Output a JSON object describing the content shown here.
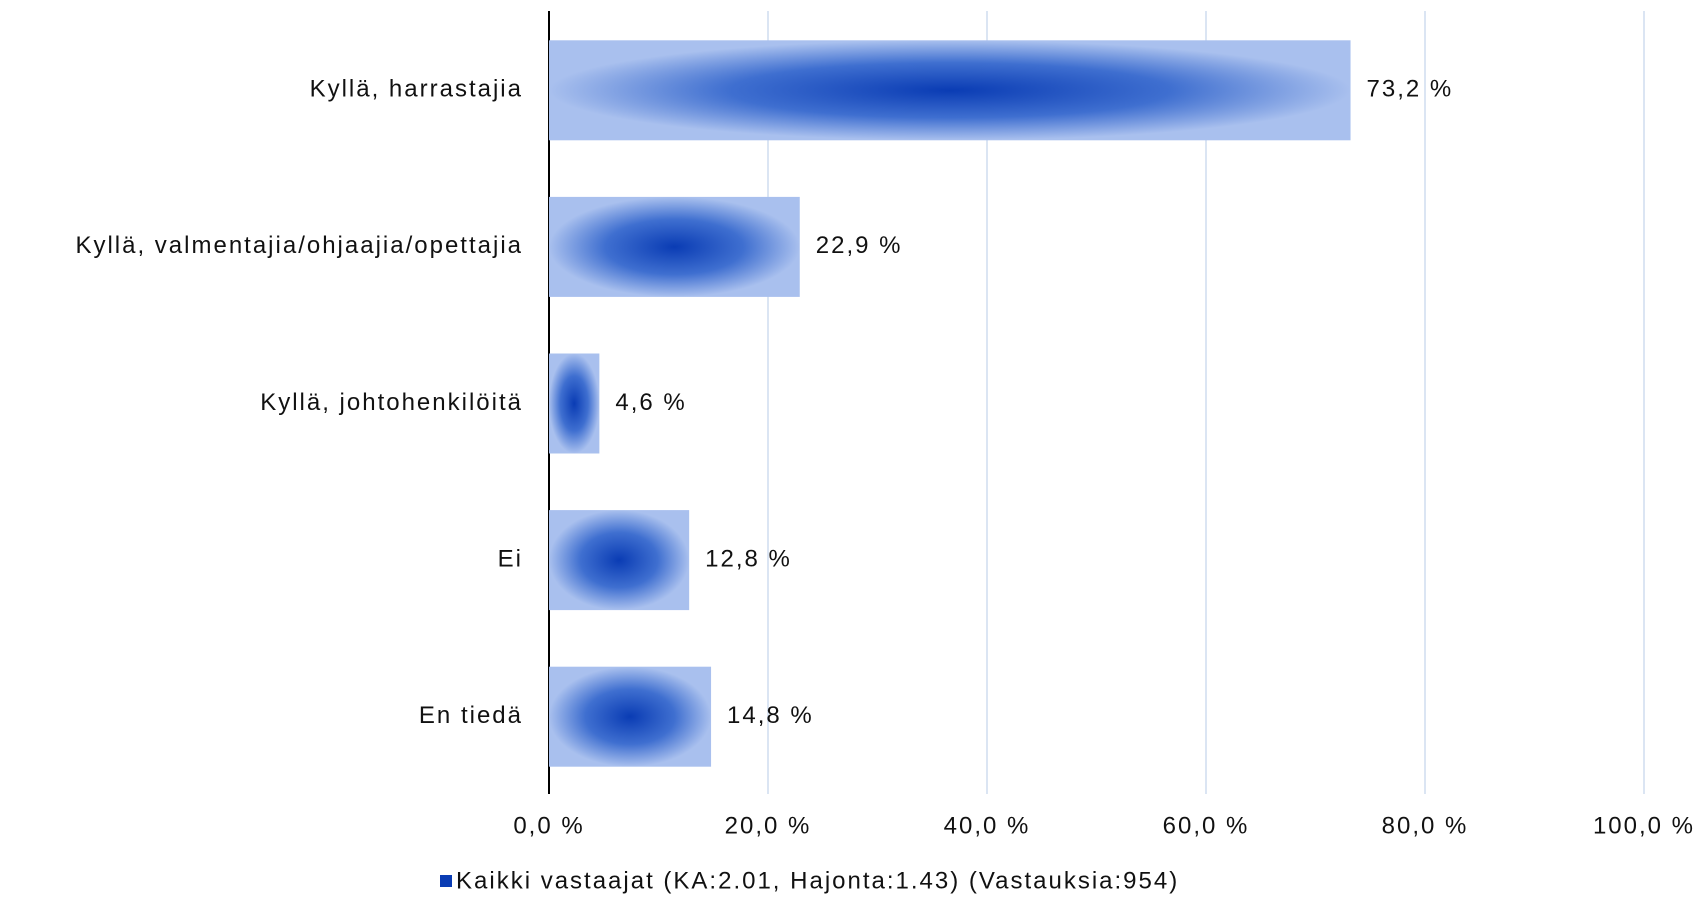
{
  "chart_data": {
    "type": "barh",
    "categories": [
      "Kyllä, harrastajia",
      "Kyllä, valmentajia/ohjaajia/opettajia",
      "Kyllä, johtohenkilöitä",
      "Ei",
      "En tiedä"
    ],
    "series": [
      {
        "name": "Kaikki vastaajat (KA:2.01, Hajonta:1.43) (Vastauksia:954)",
        "color": "#0a3cb4",
        "values": [
          73.2,
          22.9,
          4.6,
          12.8,
          14.8
        ],
        "value_labels": [
          "73,2 %",
          "22,9 %",
          "4,6 %",
          "12,8 %",
          "14,8 %"
        ]
      }
    ],
    "xlim": [
      0,
      100
    ],
    "xticks": [
      {
        "value": 0,
        "label": "0,0 %"
      },
      {
        "value": 20,
        "label": "20,0 %"
      },
      {
        "value": 40,
        "label": "40,0 %"
      },
      {
        "value": 60,
        "label": "60,0 %"
      },
      {
        "value": 80,
        "label": "80,0 %"
      },
      {
        "value": 100,
        "label": "100,0 %"
      }
    ],
    "grid": true
  }
}
